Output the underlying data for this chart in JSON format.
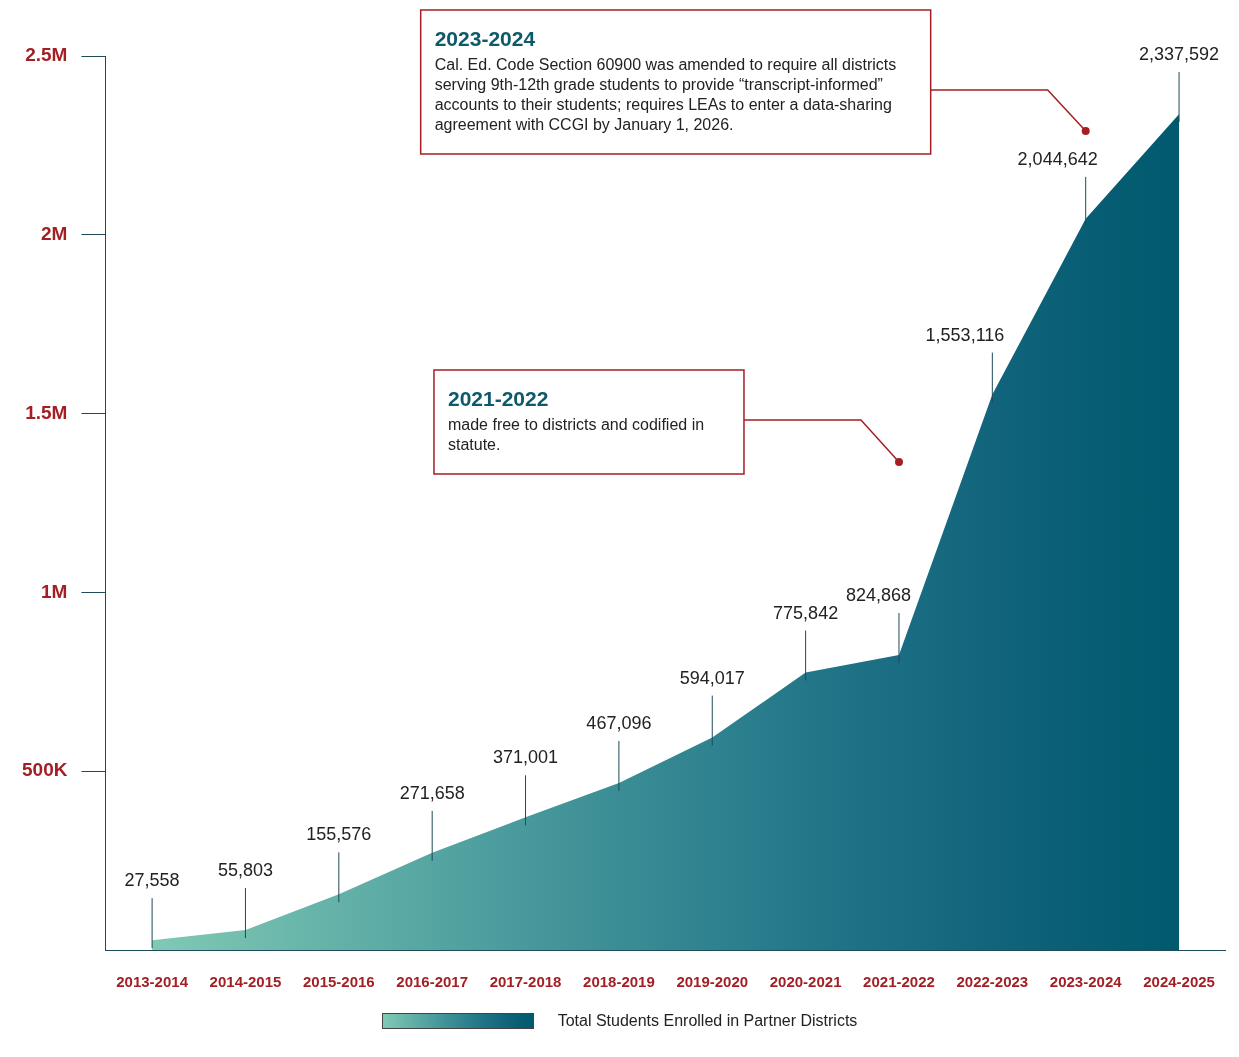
{
  "chart_data": {
    "type": "area",
    "categories": [
      "2013-2014",
      "2014-2015",
      "2015-2016",
      "2016-2017",
      "2017-2018",
      "2018-2019",
      "2019-2020",
      "2020-2021",
      "2021-2022",
      "2022-2023",
      "2023-2024",
      "2024-2025"
    ],
    "series": [
      {
        "name": "Total Students Enrolled in Partner Districts",
        "values": [
          27558,
          55803,
          155576,
          271658,
          371001,
          467096,
          594017,
          775842,
          824868,
          1553116,
          2044642,
          2337592
        ],
        "value_labels": [
          "27,558",
          "55,803",
          "155,576",
          "271,658",
          "371,001",
          "467,096",
          "594,017",
          "775,842",
          "824,868",
          "1,553,116",
          "2,044,642",
          "2,337,592"
        ],
        "colors": [
          "#80c9b5",
          "#72bdae",
          "#63b1a8",
          "#55a5a2",
          "#48999c",
          "#3b8d95",
          "#2f828f",
          "#247788",
          "#1a6d82",
          "#11647b",
          "#085e74",
          "#005a6e"
        ]
      }
    ],
    "ylim": [
      0,
      2500000
    ],
    "yticks": [
      {
        "value": 500000,
        "label": "500K"
      },
      {
        "value": 1000000,
        "label": "1M"
      },
      {
        "value": 1500000,
        "label": "1.5M"
      },
      {
        "value": 2000000,
        "label": "2M"
      },
      {
        "value": 2500000,
        "label": "2.5M"
      }
    ],
    "grid": false,
    "legend": "bottom",
    "annotations": [
      "2021-2022\nmade free to districts and codified in statute.",
      "2023-2024\nCal. Ed. Code Section 60900 was amended to require all districts serving 9th-12th grade students to provide “transcript-informed” accounts to their students; requires LEAs to enter a data-sharing agreement with CCGI by January 1, 2026."
    ]
  }
}
